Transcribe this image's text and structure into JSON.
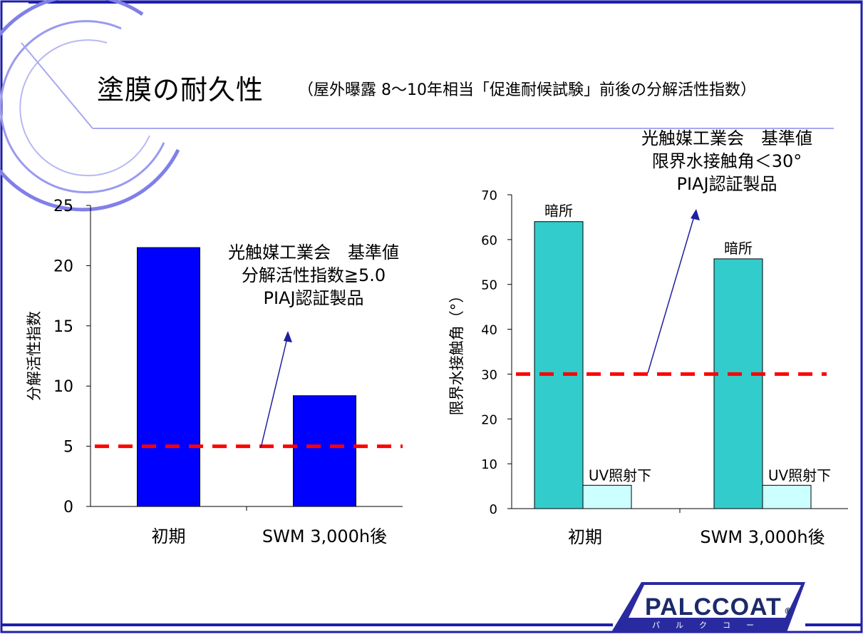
{
  "page": {
    "title": "塗膜の耐久性",
    "subtitle": "（屋外曝露 8～10年相当「促進耐候試験」前後の分解活性指数）"
  },
  "logo": {
    "text": "PALCCOAT",
    "kana": "パルクコート",
    "mark": "®"
  },
  "colors": {
    "bar_left": "#0000ff",
    "bar_dark": "#33cccc",
    "bar_uv": "#ccffff",
    "ref_line": "#ff0000",
    "frame": "#1f1fa8",
    "arrow": "#1f1f9f"
  },
  "chart_data": [
    {
      "type": "bar",
      "categories": [
        "初期",
        "SWM 3,000h後"
      ],
      "values": [
        21.5,
        9.2
      ],
      "ylabel": "分解活性指数",
      "xlabel": "",
      "ylim": [
        0,
        25
      ],
      "yticks": [
        0,
        5,
        10,
        15,
        20,
        25
      ],
      "reference_line": {
        "value": 5.0,
        "style": "dashed"
      },
      "annotation": {
        "lines": [
          "光触媒工業会　基準値",
          "分解活性指数≧5.0",
          "PIAJ認証製品"
        ]
      }
    },
    {
      "type": "bar",
      "categories": [
        "初期",
        "SWM 3,000h後"
      ],
      "series": [
        {
          "name": "暗所",
          "values": [
            64,
            55.7
          ]
        },
        {
          "name": "UV照射下",
          "values": [
            5.2,
            5.2
          ]
        }
      ],
      "ylabel": "限界水接触角（°）",
      "xlabel": "",
      "ylim": [
        0,
        70
      ],
      "yticks": [
        0,
        10,
        20,
        30,
        40,
        50,
        60,
        70
      ],
      "reference_line": {
        "value": 30,
        "style": "dashed"
      },
      "annotation": {
        "lines": [
          "光触媒工業会　基準値",
          "限界水接触角＜30°",
          "PIAJ認証製品"
        ]
      }
    }
  ]
}
